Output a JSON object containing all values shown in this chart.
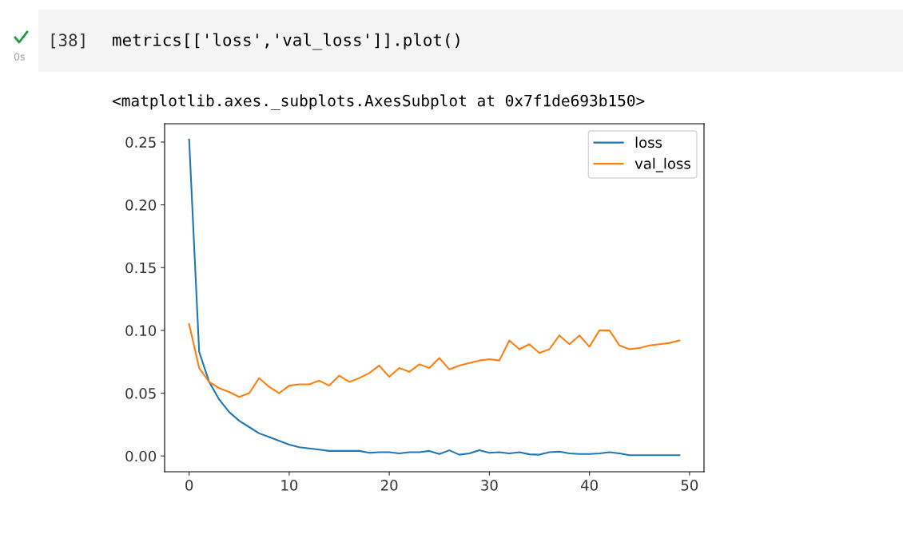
{
  "chart_data": {
    "type": "line",
    "annotations": [
      "[38]",
      "metrics[['loss','val_loss']].plot()",
      "0s",
      "<matplotlib.axes._subplots.AxesSubplot at 0x7f1de693b150>"
    ],
    "x": [
      0,
      1,
      2,
      3,
      4,
      5,
      6,
      7,
      8,
      9,
      10,
      11,
      12,
      13,
      14,
      15,
      16,
      17,
      18,
      19,
      20,
      21,
      22,
      23,
      24,
      25,
      26,
      27,
      28,
      29,
      30,
      31,
      32,
      33,
      34,
      35,
      36,
      37,
      38,
      39,
      40,
      41,
      42,
      43,
      44,
      45,
      46,
      47,
      48,
      49
    ],
    "series": [
      {
        "name": "loss",
        "color": "#1f77b4",
        "values": [
          0.252,
          0.083,
          0.059,
          0.045,
          0.035,
          0.028,
          0.023,
          0.018,
          0.015,
          0.012,
          0.009,
          0.007,
          0.006,
          0.005,
          0.004,
          0.004,
          0.004,
          0.004,
          0.0025,
          0.003,
          0.003,
          0.002,
          0.003,
          0.003,
          0.004,
          0.0015,
          0.0045,
          0.001,
          0.002,
          0.0045,
          0.0025,
          0.003,
          0.002,
          0.003,
          0.0013,
          0.001,
          0.003,
          0.0035,
          0.002,
          0.0015,
          0.0015,
          0.002,
          0.003,
          0.002,
          0.0006,
          0.0006,
          0.0006,
          0.0006,
          0.0006,
          0.0006
        ]
      },
      {
        "name": "val_loss",
        "color": "#ff7f0e",
        "values": [
          0.105,
          0.07,
          0.059,
          0.054,
          0.051,
          0.047,
          0.05,
          0.062,
          0.055,
          0.05,
          0.056,
          0.057,
          0.057,
          0.06,
          0.056,
          0.064,
          0.059,
          0.062,
          0.066,
          0.072,
          0.063,
          0.07,
          0.067,
          0.073,
          0.07,
          0.078,
          0.069,
          0.072,
          0.074,
          0.076,
          0.077,
          0.076,
          0.092,
          0.085,
          0.089,
          0.082,
          0.085,
          0.096,
          0.089,
          0.096,
          0.087,
          0.1,
          0.1,
          0.088,
          0.085,
          0.086,
          0.088,
          0.089,
          0.09,
          0.092
        ]
      }
    ],
    "xlim": [
      -2.45,
      51.45
    ],
    "xticks": [
      0,
      10,
      20,
      30,
      40,
      50
    ],
    "ylim": [
      -0.0126,
      0.2646
    ],
    "yticks": [
      {
        "value": 0,
        "label": "0.00"
      },
      0.05,
      {
        "value": 0.1,
        "label": "0.10"
      },
      0.15,
      {
        "value": 0.2,
        "label": "0.20"
      },
      0.25
    ],
    "legend": "top right",
    "grid": false
  }
}
